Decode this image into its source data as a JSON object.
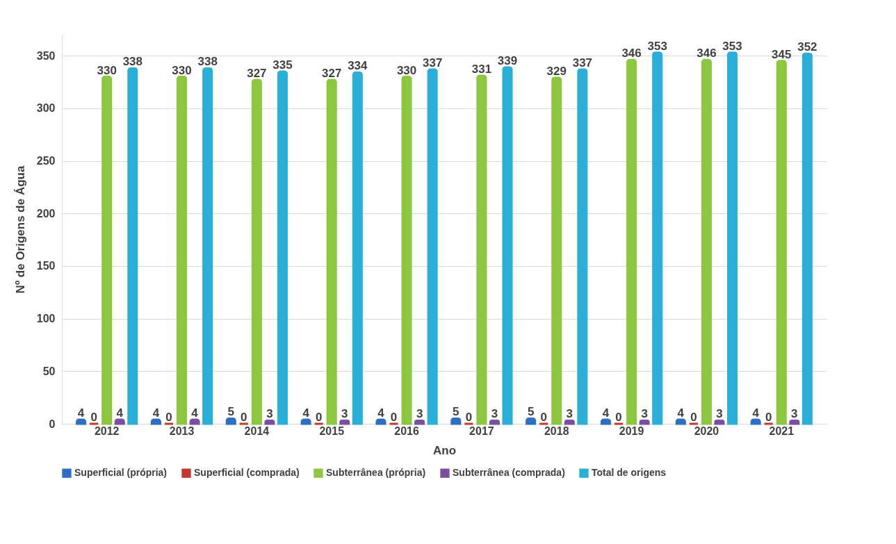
{
  "chart_data": {
    "type": "bar",
    "xlabel": "Ano",
    "ylabel": "Nº de Origens de Água",
    "categories": [
      "2012",
      "2013",
      "2014",
      "2015",
      "2016",
      "2017",
      "2018",
      "2019",
      "2020",
      "2021"
    ],
    "series": [
      {
        "name": "Superficial (própria)",
        "color": "#2e6fc4",
        "values": [
          4,
          4,
          5,
          4,
          4,
          5,
          5,
          4,
          4,
          4
        ]
      },
      {
        "name": "Superficial (comprada)",
        "color": "#c0392b",
        "values": [
          0,
          0,
          0,
          0,
          0,
          0,
          0,
          0,
          0,
          0
        ]
      },
      {
        "name": "Subterrânea (própria)",
        "color": "#8dc63f",
        "values": [
          330,
          330,
          327,
          327,
          330,
          331,
          329,
          346,
          346,
          345
        ]
      },
      {
        "name": "Subterrânea (comprada)",
        "color": "#7b4fa0",
        "values": [
          4,
          4,
          3,
          3,
          3,
          3,
          3,
          3,
          3,
          3
        ]
      },
      {
        "name": "Total de origens",
        "color": "#2ab0d8",
        "values": [
          338,
          338,
          335,
          334,
          337,
          339,
          337,
          353,
          353,
          352
        ]
      }
    ],
    "ylim": [
      0,
      370
    ],
    "yticks": [
      0,
      50,
      100,
      150,
      200,
      250,
      300,
      350
    ],
    "grid": "y",
    "legend": "bottom",
    "data_labels": true
  }
}
